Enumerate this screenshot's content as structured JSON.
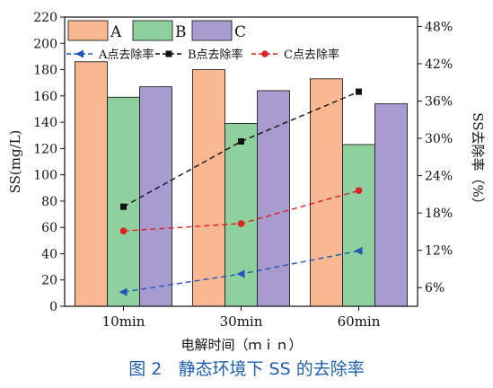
{
  "caption": "图 2   静态环境下 SS 的去除率",
  "chart_data": {
    "type": "bar",
    "categories": [
      "10min",
      "30min",
      "60min"
    ],
    "xlabel": "电解时间（ｍｉｎ）",
    "ylabel": "SS(mg/L)",
    "y2label": "SS去除率（%）",
    "ylim": [
      0,
      220
    ],
    "yticks": [
      0,
      20,
      40,
      60,
      80,
      100,
      120,
      140,
      160,
      180,
      200,
      220
    ],
    "y2lim": [
      3,
      49.5
    ],
    "y2ticks": [
      6,
      12,
      18,
      24,
      30,
      36,
      42,
      48
    ],
    "y2tick_labels": [
      "6%",
      "12%",
      "18%",
      "24%",
      "30%",
      "36%",
      "42%",
      "48%"
    ],
    "series": [
      {
        "name": "A",
        "values": [
          186,
          180,
          173
        ],
        "color": "#f9b891"
      },
      {
        "name": "B",
        "values": [
          159,
          139,
          123
        ],
        "color": "#8fd09f"
      },
      {
        "name": "C",
        "values": [
          167,
          164,
          154
        ],
        "color": "#a79bcf"
      }
    ],
    "line_series": [
      {
        "name": "A点去除率",
        "values": [
          5.3,
          8.2,
          11.9
        ],
        "color": "#2255b8",
        "marker": "triangle-left"
      },
      {
        "name": "B点去除率",
        "values": [
          19.0,
          29.5,
          37.5
        ],
        "color": "#111111",
        "marker": "square"
      },
      {
        "name": "C点去除率",
        "values": [
          15.1,
          16.3,
          21.6
        ],
        "color": "#dd2222",
        "marker": "circle"
      }
    ],
    "legend": "top-left, inside plot",
    "grid": false
  }
}
